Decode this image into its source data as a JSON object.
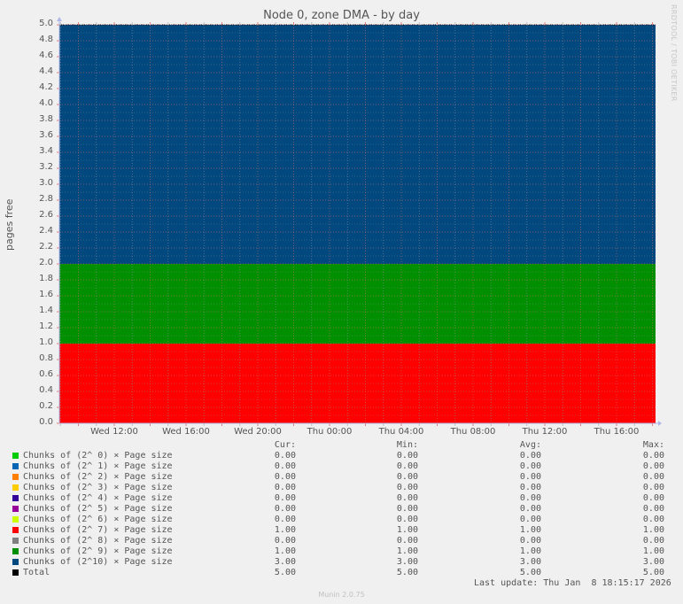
{
  "chart_data": {
    "type": "area",
    "stacked": true,
    "title": "Node 0, zone DMA - by day",
    "xlabel": "",
    "ylabel": "pages free",
    "ylim": [
      0,
      5
    ],
    "yticks": [
      "0.0",
      "0.2",
      "0.4",
      "0.6",
      "0.8",
      "1.0",
      "1.2",
      "1.4",
      "1.6",
      "1.8",
      "2.0",
      "2.2",
      "2.4",
      "2.6",
      "2.8",
      "3.0",
      "3.2",
      "3.4",
      "3.6",
      "3.8",
      "4.0",
      "4.2",
      "4.4",
      "4.6",
      "4.8",
      "5.0"
    ],
    "xticks": [
      "Wed 12:00",
      "Wed 16:00",
      "Wed 20:00",
      "Thu 00:00",
      "Thu 04:00",
      "Thu 08:00",
      "Thu 12:00",
      "Thu 16:00"
    ],
    "grid": true,
    "legend_position": "bottom",
    "columns": [
      "Cur:",
      "Min:",
      "Avg:",
      "Max:"
    ],
    "series": [
      {
        "name": "Chunks of (2^ 0) * Page size",
        "color": "#00cc00",
        "cur": "0.00",
        "min": "0.00",
        "avg": "0.00",
        "max": "0.00",
        "value": 0
      },
      {
        "name": "Chunks of (2^ 1) * Page size",
        "color": "#0066b3",
        "cur": "0.00",
        "min": "0.00",
        "avg": "0.00",
        "max": "0.00",
        "value": 0
      },
      {
        "name": "Chunks of (2^ 2) * Page size",
        "color": "#ff8000",
        "cur": "0.00",
        "min": "0.00",
        "avg": "0.00",
        "max": "0.00",
        "value": 0
      },
      {
        "name": "Chunks of (2^ 3) * Page size",
        "color": "#ffcc00",
        "cur": "0.00",
        "min": "0.00",
        "avg": "0.00",
        "max": "0.00",
        "value": 0
      },
      {
        "name": "Chunks of (2^ 4) * Page size",
        "color": "#330099",
        "cur": "0.00",
        "min": "0.00",
        "avg": "0.00",
        "max": "0.00",
        "value": 0
      },
      {
        "name": "Chunks of (2^ 5) * Page size",
        "color": "#990099",
        "cur": "0.00",
        "min": "0.00",
        "avg": "0.00",
        "max": "0.00",
        "value": 0
      },
      {
        "name": "Chunks of (2^ 6) * Page size",
        "color": "#ccff00",
        "cur": "0.00",
        "min": "0.00",
        "avg": "0.00",
        "max": "0.00",
        "value": 0
      },
      {
        "name": "Chunks of (2^ 7) * Page size",
        "color": "#ff0000",
        "cur": "1.00",
        "min": "1.00",
        "avg": "1.00",
        "max": "1.00",
        "value": 1
      },
      {
        "name": "Chunks of (2^ 8) * Page size",
        "color": "#808080",
        "cur": "0.00",
        "min": "0.00",
        "avg": "0.00",
        "max": "0.00",
        "value": 0
      },
      {
        "name": "Chunks of (2^ 9) * Page size",
        "color": "#008f00",
        "cur": "1.00",
        "min": "1.00",
        "avg": "1.00",
        "max": "1.00",
        "value": 1
      },
      {
        "name": "Chunks of (2^10) * Page size",
        "color": "#00487d",
        "cur": "3.00",
        "min": "3.00",
        "avg": "3.00",
        "max": "3.00",
        "value": 3
      },
      {
        "name": "Total",
        "color": "#000000",
        "cur": "5.00",
        "min": "5.00",
        "avg": "5.00",
        "max": "5.00",
        "value": 5
      }
    ]
  },
  "watermark": "RRDTOOL / TOBI OETIKER",
  "last_update": "Last update: Thu Jan  8 18:15:17 2026",
  "footer": "Munin 2.0.75"
}
